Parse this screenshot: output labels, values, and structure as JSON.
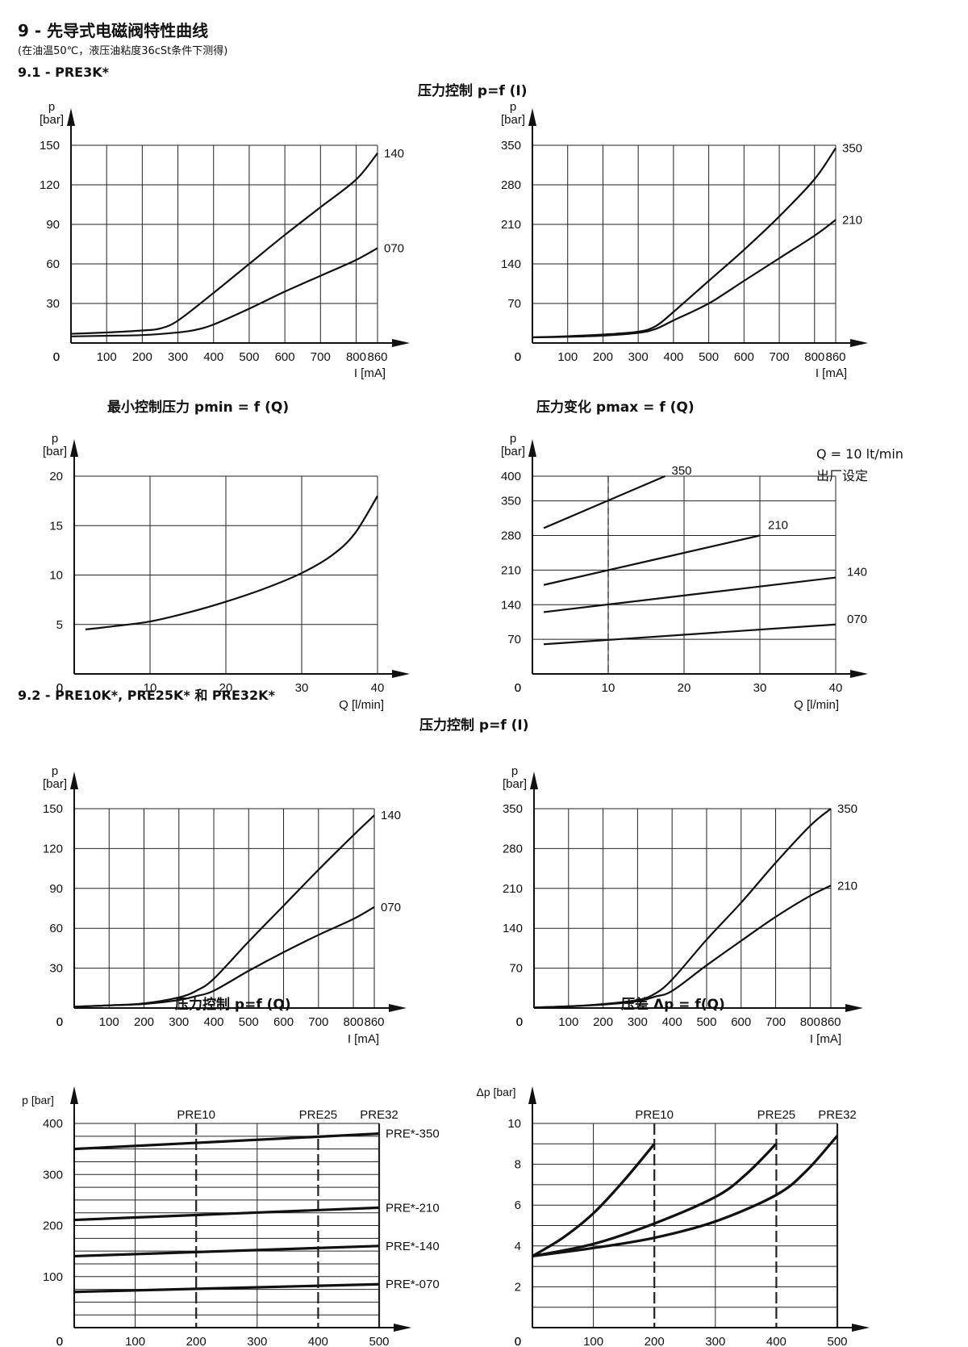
{
  "header": {
    "title": "9 - 先导式电磁阀特性曲线",
    "note": "(在油温50℃，液压油粘度36cSt条件下测得)",
    "section1": "9.1 - PRE3K*",
    "section2": "9.2 - PRE10K*, PRE25K* 和 PRE32K*"
  },
  "colors": {
    "line": "#111111",
    "grid": "#222222",
    "background": "#ffffff"
  },
  "chart_titles": {
    "c1_title": "压力控制 p=f (I)",
    "c3_title": "最小控制压力 pmin = f (Q)",
    "c4_title": "压力变化 pmax = f (Q)",
    "c5_title": "压力控制 p=f (I)",
    "c7_title": "压力控制 p=f (Q)",
    "c8_title": "压差 Δp = f(Q)"
  },
  "c4_note": {
    "line1": "Q = 10 lt/min",
    "line2": "出厂设定"
  },
  "chart_data": [
    {
      "id": "c1",
      "type": "line",
      "title": "",
      "ylabel": "p\n[bar]",
      "xlabel": "I [mA]",
      "xlim": [
        0,
        860
      ],
      "ylim": [
        0,
        150
      ],
      "x_ticks": [
        "0",
        "100",
        "200",
        "300",
        "400",
        "500",
        "600",
        "700",
        "800",
        "860"
      ],
      "y_ticks": [
        "0",
        "30",
        "60",
        "90",
        "120",
        "150"
      ],
      "grid": true,
      "series": [
        {
          "name": "140",
          "x": [
            0,
            100,
            200,
            250,
            300,
            400,
            500,
            600,
            700,
            800,
            860
          ],
          "y": [
            7,
            8,
            9.5,
            11,
            17,
            38,
            60,
            82,
            103,
            124,
            144
          ]
        },
        {
          "name": "070",
          "x": [
            0,
            100,
            200,
            300,
            350,
            400,
            500,
            600,
            700,
            800,
            860
          ],
          "y": [
            5,
            5.5,
            6,
            8,
            10,
            14,
            26,
            39,
            51,
            63,
            72
          ]
        }
      ]
    },
    {
      "id": "c2",
      "type": "line",
      "title": "",
      "ylabel": "p\n[bar]",
      "xlabel": "I [mA]",
      "xlim": [
        0,
        860
      ],
      "ylim": [
        0,
        350
      ],
      "x_ticks": [
        "0",
        "100",
        "200",
        "300",
        "400",
        "500",
        "600",
        "700",
        "800",
        "860"
      ],
      "y_ticks": [
        "0",
        "70",
        "140",
        "210",
        "280",
        "350"
      ],
      "grid": true,
      "series": [
        {
          "name": "350",
          "x": [
            0,
            100,
            200,
            300,
            350,
            400,
            500,
            600,
            700,
            800,
            860
          ],
          "y": [
            10,
            12,
            15,
            20,
            30,
            55,
            110,
            165,
            224,
            290,
            345
          ]
        },
        {
          "name": "210",
          "x": [
            0,
            100,
            200,
            300,
            350,
            400,
            500,
            600,
            700,
            800,
            860
          ],
          "y": [
            10,
            11,
            13,
            18,
            25,
            40,
            70,
            110,
            150,
            190,
            218
          ]
        }
      ]
    },
    {
      "id": "c3",
      "type": "line",
      "title": "",
      "ylabel": "p\n[bar]",
      "xlabel": "Q [l/min]",
      "xlim": [
        0,
        40
      ],
      "ylim": [
        0,
        20
      ],
      "x_ticks": [
        "0",
        "10",
        "20",
        "30",
        "40"
      ],
      "y_ticks": [
        "0",
        "5",
        "10",
        "15",
        "20"
      ],
      "grid": true,
      "series": [
        {
          "name": "",
          "x": [
            1.5,
            5,
            10,
            15,
            20,
            25,
            30,
            34,
            37,
            40
          ],
          "y": [
            4.5,
            4.8,
            5.3,
            6.2,
            7.3,
            8.6,
            10.2,
            12,
            14.2,
            18
          ]
        }
      ]
    },
    {
      "id": "c4",
      "type": "line",
      "title": "",
      "ylabel": "p\n[bar]",
      "xlabel": "Q [l/min]",
      "xlim": [
        0,
        40
      ],
      "ylim": [
        0,
        400
      ],
      "x_ticks": [
        "0",
        "10",
        "20",
        "30",
        "40"
      ],
      "y_ticks": [
        "0",
        "70",
        "140",
        "210",
        "280",
        "350",
        "400"
      ],
      "grid": true,
      "series": [
        {
          "name": "350",
          "x": [
            1.5,
            17.5
          ],
          "y": [
            295,
            400
          ]
        },
        {
          "name": "210",
          "x": [
            1.5,
            30
          ],
          "y": [
            180,
            280
          ]
        },
        {
          "name": "140",
          "x": [
            1.5,
            40
          ],
          "y": [
            125,
            195
          ]
        },
        {
          "name": "070",
          "x": [
            1.5,
            40
          ],
          "y": [
            60,
            100
          ]
        }
      ]
    },
    {
      "id": "c5",
      "type": "line",
      "title": "",
      "ylabel": "p\n[bar]",
      "xlabel": "I [mA]",
      "xlim": [
        0,
        860
      ],
      "ylim": [
        0,
        150
      ],
      "x_ticks": [
        "0",
        "100",
        "200",
        "300",
        "400",
        "500",
        "600",
        "700",
        "800",
        "860"
      ],
      "y_ticks": [
        "0",
        "30",
        "60",
        "90",
        "120",
        "150"
      ],
      "grid": true,
      "series": [
        {
          "name": "140",
          "x": [
            0,
            100,
            200,
            300,
            350,
            400,
            500,
            600,
            700,
            800,
            860
          ],
          "y": [
            1,
            2,
            3.5,
            8,
            13,
            22,
            50,
            77,
            104,
            130,
            145
          ]
        },
        {
          "name": "070",
          "x": [
            0,
            100,
            200,
            300,
            350,
            400,
            500,
            600,
            700,
            800,
            860
          ],
          "y": [
            1,
            2,
            3,
            6,
            9,
            13,
            28,
            42,
            55,
            67,
            76
          ]
        }
      ]
    },
    {
      "id": "c6",
      "type": "line",
      "title": "",
      "ylabel": "p\n[bar]",
      "xlabel": "I [mA]",
      "xlim": [
        0,
        860
      ],
      "ylim": [
        0,
        350
      ],
      "x_ticks": [
        "0",
        "100",
        "200",
        "300",
        "400",
        "500",
        "600",
        "700",
        "800",
        "860"
      ],
      "y_ticks": [
        "0",
        "70",
        "140",
        "210",
        "280",
        "350"
      ],
      "grid": true,
      "series": [
        {
          "name": "350",
          "x": [
            0,
            100,
            200,
            300,
            350,
            400,
            500,
            600,
            700,
            800,
            860
          ],
          "y": [
            1,
            3,
            7,
            14,
            25,
            50,
            120,
            185,
            255,
            320,
            350
          ]
        },
        {
          "name": "210",
          "x": [
            0,
            100,
            200,
            300,
            350,
            400,
            500,
            600,
            700,
            800,
            860
          ],
          "y": [
            1,
            3,
            6,
            12,
            20,
            30,
            75,
            118,
            160,
            197,
            215
          ]
        }
      ]
    },
    {
      "id": "c7",
      "type": "line",
      "title": "",
      "ylabel": "p [bar]",
      "xlabel": "",
      "xlim": [
        0,
        500
      ],
      "ylim": [
        0,
        400
      ],
      "x_ticks": [
        "0",
        "100",
        "200",
        "300",
        "400",
        "500"
      ],
      "y_ticks": [
        "0",
        "100",
        "200",
        "300",
        "400"
      ],
      "markers": [
        {
          "x": 200,
          "label": "PRE10"
        },
        {
          "x": 400,
          "label": "PRE25"
        },
        {
          "x": 500,
          "label": "PRE32"
        }
      ],
      "grid": true,
      "series": [
        {
          "name": "PRE*-350",
          "x": [
            0,
            500
          ],
          "y": [
            350,
            380
          ]
        },
        {
          "name": "PRE*-210",
          "x": [
            0,
            500
          ],
          "y": [
            211,
            235
          ]
        },
        {
          "name": "PRE*-140",
          "x": [
            0,
            500
          ],
          "y": [
            140,
            160
          ]
        },
        {
          "name": "PRE*-070",
          "x": [
            0,
            500
          ],
          "y": [
            70,
            85
          ]
        }
      ]
    },
    {
      "id": "c8",
      "type": "line",
      "title": "",
      "ylabel": "Δp [bar]",
      "xlabel": "",
      "xlim": [
        0,
        500
      ],
      "ylim": [
        0,
        10
      ],
      "x_ticks": [
        "0",
        "100",
        "200",
        "300",
        "400",
        "500"
      ],
      "y_ticks": [
        "0",
        "2",
        "4",
        "6",
        "8",
        "10"
      ],
      "markers": [
        {
          "x": 200,
          "label": "PRE10"
        },
        {
          "x": 400,
          "label": "PRE25"
        },
        {
          "x": 500,
          "label": "PRE32"
        }
      ],
      "grid": true,
      "series": [
        {
          "name": "PRE10",
          "x": [
            0,
            50,
            100,
            150,
            200
          ],
          "y": [
            3.5,
            4.4,
            5.6,
            7.2,
            9
          ]
        },
        {
          "name": "PRE25",
          "x": [
            0,
            100,
            200,
            300,
            350,
            400
          ],
          "y": [
            3.5,
            4.1,
            5.1,
            6.4,
            7.5,
            9
          ]
        },
        {
          "name": "PRE32",
          "x": [
            0,
            100,
            200,
            300,
            400,
            450,
            500
          ],
          "y": [
            3.5,
            3.9,
            4.4,
            5.2,
            6.5,
            7.7,
            9.4
          ]
        }
      ]
    }
  ]
}
